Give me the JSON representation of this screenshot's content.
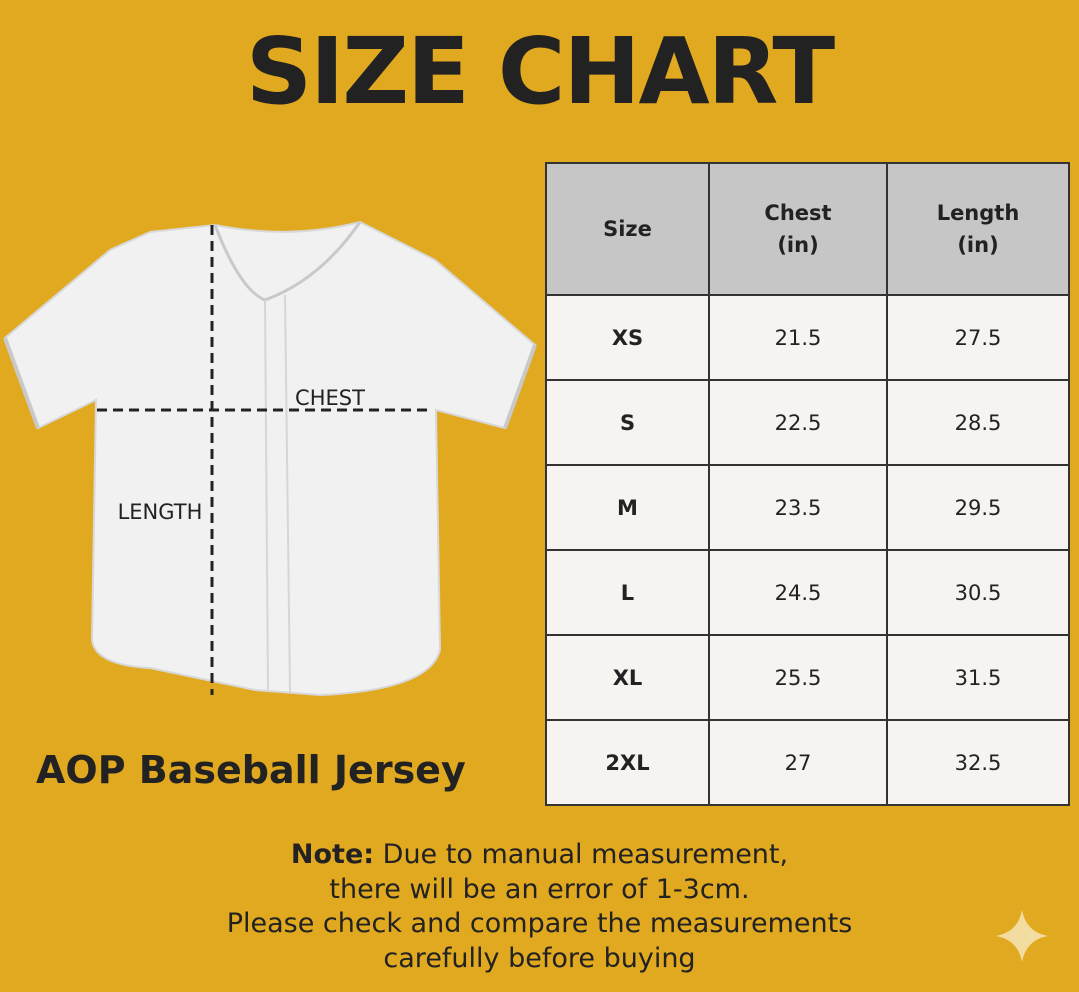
{
  "header": {
    "title": "SIZE CHART"
  },
  "diagram": {
    "chest_label": "CHEST",
    "length_label": "LENGTH"
  },
  "product": {
    "name": "AOP Baseball Jersey"
  },
  "table": {
    "columns": [
      [
        "Size"
      ],
      [
        "Chest",
        "(in)"
      ],
      [
        "Length",
        "(in)"
      ]
    ],
    "rows": [
      [
        "XS",
        21.5,
        27.5
      ],
      [
        "S",
        22.5,
        28.5
      ],
      [
        "M",
        23.5,
        29.5
      ],
      [
        "L",
        24.5,
        30.5
      ],
      [
        "XL",
        25.5,
        31.5
      ],
      [
        "2XL",
        27,
        32.5
      ]
    ]
  },
  "note": {
    "label": "Note:",
    "lines": [
      "Due to manual measurement,",
      "there will be an error of 1-3cm.",
      "Please check and compare the measurements",
      "carefully before buying"
    ]
  }
}
